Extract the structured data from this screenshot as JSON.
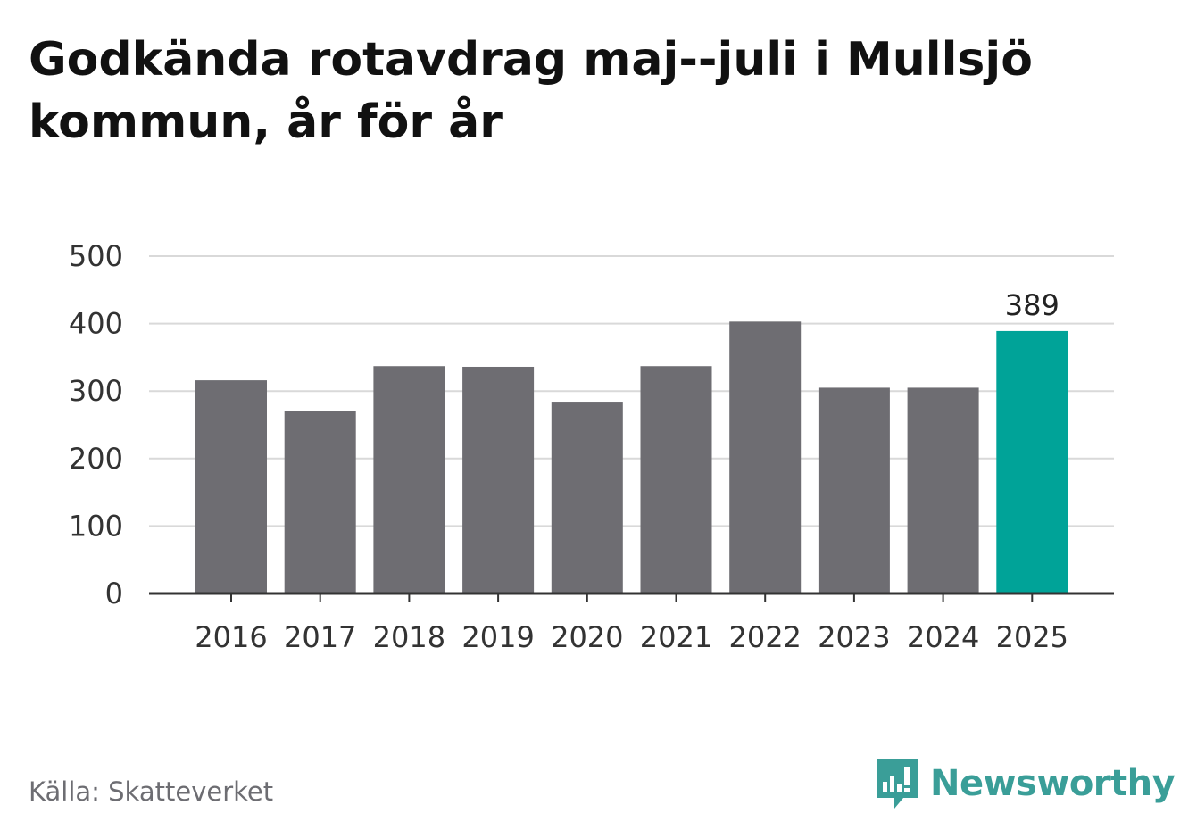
{
  "title": "Godkända rotavdrag maj--juli i Mullsjö kommun, år för år",
  "source": "Källa: Skatteverket",
  "brand": "Newsworthy",
  "colors": {
    "bar": "#6e6d72",
    "highlight": "#00a398",
    "grid": "#d9d9d9",
    "axis": "#333333",
    "brand": "#3a9e98"
  },
  "chart_data": {
    "type": "bar",
    "categories": [
      "2016",
      "2017",
      "2018",
      "2019",
      "2020",
      "2021",
      "2022",
      "2023",
      "2024",
      "2025"
    ],
    "values": [
      316,
      271,
      337,
      336,
      283,
      337,
      403,
      305,
      305,
      389
    ],
    "highlight_index": 9,
    "annotations": [
      {
        "category": "2025",
        "label": "389"
      }
    ],
    "y_ticks": [
      "0",
      "100",
      "200",
      "300",
      "400",
      "500"
    ],
    "ylim": [
      0,
      500
    ],
    "grid": true,
    "xlabel": "",
    "ylabel": ""
  }
}
